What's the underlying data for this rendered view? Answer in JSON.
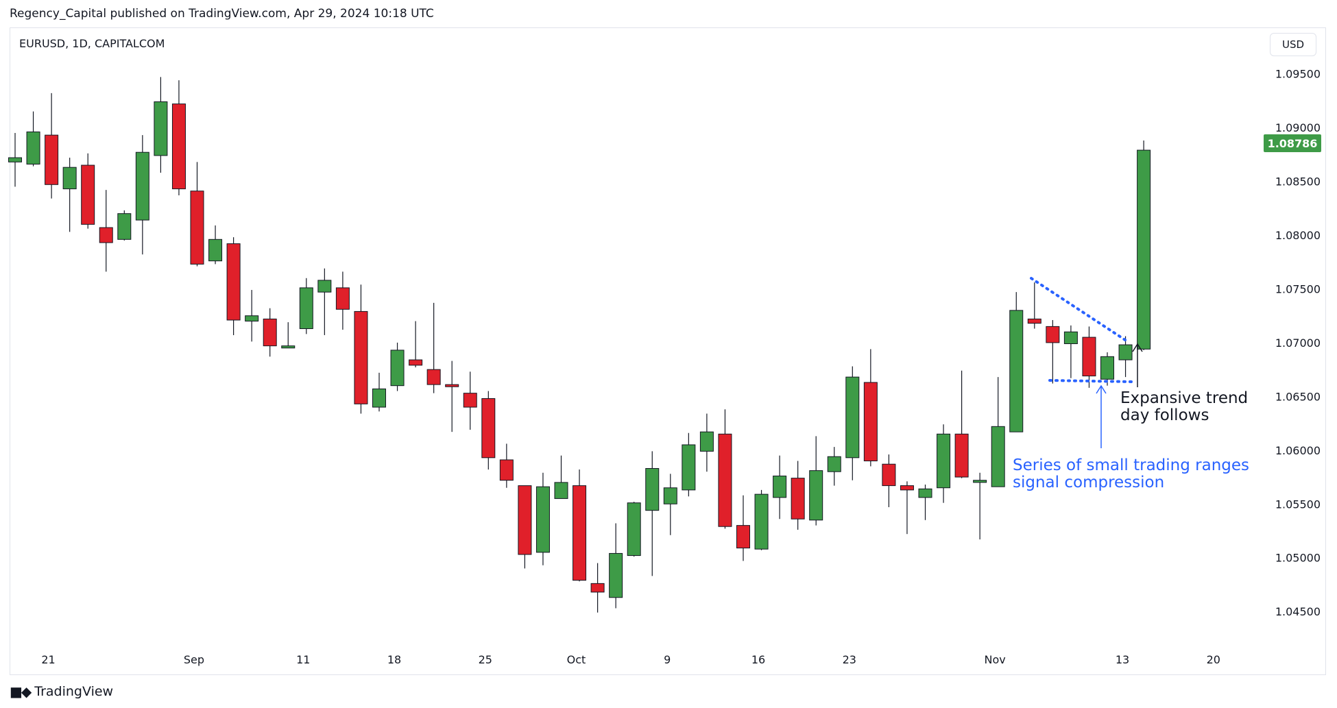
{
  "header": {
    "published": "Regency_Capital published on TradingView.com, Apr 29, 2024 10:18 UTC"
  },
  "symbol": "EURUSD, 1D, CAPITALCOM",
  "currency": "USD",
  "brand": "TradingView",
  "colors": {
    "up": "#3e9b47",
    "down": "#e0202a",
    "wick": "#131722",
    "blue": "#2962ff"
  },
  "chart_data": {
    "type": "candlestick",
    "ylim": [
      1.0445,
      1.096
    ],
    "y_ticks": [
      "1.09500",
      "1.09000",
      "1.08500",
      "1.08000",
      "1.07500",
      "1.07000",
      "1.06500",
      "1.06000",
      "1.05500",
      "1.05000",
      "1.04500"
    ],
    "x_ticks": [
      {
        "label": "21",
        "index": 1
      },
      {
        "label": "Sep",
        "index": 9
      },
      {
        "label": "11",
        "index": 15
      },
      {
        "label": "18",
        "index": 20
      },
      {
        "label": "25",
        "index": 25
      },
      {
        "label": "Oct",
        "index": 30
      },
      {
        "label": "9",
        "index": 35
      },
      {
        "label": "16",
        "index": 40
      },
      {
        "label": "23",
        "index": 45
      },
      {
        "label": "Nov",
        "index": 53
      },
      {
        "label": "13",
        "index": 60
      },
      {
        "label": "20",
        "index": 65
      }
    ],
    "candles": [
      {
        "o": 1.0868,
        "h": 1.0895,
        "l": 1.0845,
        "c": 1.0872
      },
      {
        "o": 1.0866,
        "h": 1.0915,
        "l": 1.0864,
        "c": 1.0896
      },
      {
        "o": 1.0893,
        "h": 1.0932,
        "l": 1.0834,
        "c": 1.0847
      },
      {
        "o": 1.0843,
        "h": 1.0872,
        "l": 1.0803,
        "c": 1.0863
      },
      {
        "o": 1.0865,
        "h": 1.0876,
        "l": 1.0806,
        "c": 1.081
      },
      {
        "o": 1.0807,
        "h": 1.0842,
        "l": 1.0766,
        "c": 1.0793
      },
      {
        "o": 1.0796,
        "h": 1.0823,
        "l": 1.0795,
        "c": 1.082
      },
      {
        "o": 1.0814,
        "h": 1.0893,
        "l": 1.0782,
        "c": 1.0877
      },
      {
        "o": 1.0874,
        "h": 1.0947,
        "l": 1.0858,
        "c": 1.0924
      },
      {
        "o": 1.0922,
        "h": 1.0944,
        "l": 1.0837,
        "c": 1.0843
      },
      {
        "o": 1.0841,
        "h": 1.0868,
        "l": 1.0771,
        "c": 1.0773
      },
      {
        "o": 1.0776,
        "h": 1.0809,
        "l": 1.0773,
        "c": 1.0796
      },
      {
        "o": 1.0792,
        "h": 1.0798,
        "l": 1.0707,
        "c": 1.0721
      },
      {
        "o": 1.072,
        "h": 1.0749,
        "l": 1.0701,
        "c": 1.0725
      },
      {
        "o": 1.0722,
        "h": 1.0732,
        "l": 1.0687,
        "c": 1.0697
      },
      {
        "o": 1.0695,
        "h": 1.0719,
        "l": 1.0695,
        "c": 1.0697
      },
      {
        "o": 1.0713,
        "h": 1.076,
        "l": 1.0708,
        "c": 1.0751
      },
      {
        "o": 1.0747,
        "h": 1.0769,
        "l": 1.0707,
        "c": 1.0758
      },
      {
        "o": 1.0751,
        "h": 1.0766,
        "l": 1.0712,
        "c": 1.0731
      },
      {
        "o": 1.0729,
        "h": 1.0754,
        "l": 1.0634,
        "c": 1.0643
      },
      {
        "o": 1.064,
        "h": 1.0672,
        "l": 1.0636,
        "c": 1.0657
      },
      {
        "o": 1.066,
        "h": 1.07,
        "l": 1.0655,
        "c": 1.0693
      },
      {
        "o": 1.0684,
        "h": 1.072,
        "l": 1.0677,
        "c": 1.0679
      },
      {
        "o": 1.0675,
        "h": 1.0737,
        "l": 1.0653,
        "c": 1.0661
      },
      {
        "o": 1.0661,
        "h": 1.0683,
        "l": 1.0617,
        "c": 1.0659
      },
      {
        "o": 1.0653,
        "h": 1.0673,
        "l": 1.0619,
        "c": 1.064
      },
      {
        "o": 1.0648,
        "h": 1.0655,
        "l": 1.0582,
        "c": 1.0593
      },
      {
        "o": 1.0591,
        "h": 1.0606,
        "l": 1.0565,
        "c": 1.0572
      },
      {
        "o": 1.0567,
        "h": 1.0567,
        "l": 1.049,
        "c": 1.0503
      },
      {
        "o": 1.0505,
        "h": 1.0579,
        "l": 1.0493,
        "c": 1.0566
      },
      {
        "o": 1.0555,
        "h": 1.0595,
        "l": 1.0555,
        "c": 1.057
      },
      {
        "o": 1.0567,
        "h": 1.0582,
        "l": 1.0478,
        "c": 1.0479
      },
      {
        "o": 1.0476,
        "h": 1.0495,
        "l": 1.0449,
        "c": 1.0468
      },
      {
        "o": 1.0463,
        "h": 1.0532,
        "l": 1.0453,
        "c": 1.0504
      },
      {
        "o": 1.0502,
        "h": 1.0552,
        "l": 1.0501,
        "c": 1.0551
      },
      {
        "o": 1.0544,
        "h": 1.0599,
        "l": 1.0483,
        "c": 1.0583
      },
      {
        "o": 1.055,
        "h": 1.0578,
        "l": 1.0521,
        "c": 1.0565
      },
      {
        "o": 1.0563,
        "h": 1.0616,
        "l": 1.0557,
        "c": 1.0605
      },
      {
        "o": 1.0599,
        "h": 1.0634,
        "l": 1.058,
        "c": 1.0617
      },
      {
        "o": 1.0615,
        "h": 1.0638,
        "l": 1.0527,
        "c": 1.0529
      },
      {
        "o": 1.053,
        "h": 1.0558,
        "l": 1.0497,
        "c": 1.0509
      },
      {
        "o": 1.0508,
        "h": 1.0563,
        "l": 1.0507,
        "c": 1.0559
      },
      {
        "o": 1.0556,
        "h": 1.0595,
        "l": 1.0536,
        "c": 1.0576
      },
      {
        "o": 1.0574,
        "h": 1.059,
        "l": 1.0526,
        "c": 1.0536
      },
      {
        "o": 1.0535,
        "h": 1.0613,
        "l": 1.053,
        "c": 1.0581
      },
      {
        "o": 1.058,
        "h": 1.0603,
        "l": 1.0567,
        "c": 1.0594
      },
      {
        "o": 1.0593,
        "h": 1.0678,
        "l": 1.0572,
        "c": 1.0668
      },
      {
        "o": 1.0663,
        "h": 1.0694,
        "l": 1.0585,
        "c": 1.059
      },
      {
        "o": 1.0587,
        "h": 1.0596,
        "l": 1.0547,
        "c": 1.0567
      },
      {
        "o": 1.0567,
        "h": 1.0571,
        "l": 1.0522,
        "c": 1.0563
      },
      {
        "o": 1.0556,
        "h": 1.0568,
        "l": 1.0535,
        "c": 1.0564
      },
      {
        "o": 1.0565,
        "h": 1.0624,
        "l": 1.0551,
        "c": 1.0615
      },
      {
        "o": 1.0615,
        "h": 1.0674,
        "l": 1.0574,
        "c": 1.0575
      },
      {
        "o": 1.057,
        "h": 1.0579,
        "l": 1.0517,
        "c": 1.0572
      },
      {
        "o": 1.0566,
        "h": 1.0668,
        "l": 1.0566,
        "c": 1.0622
      },
      {
        "o": 1.0617,
        "h": 1.0747,
        "l": 1.0617,
        "c": 1.073
      },
      {
        "o": 1.0722,
        "h": 1.0756,
        "l": 1.0713,
        "c": 1.0718
      },
      {
        "o": 1.0715,
        "h": 1.0721,
        "l": 1.0662,
        "c": 1.07
      },
      {
        "o": 1.0699,
        "h": 1.0716,
        "l": 1.0667,
        "c": 1.071
      },
      {
        "o": 1.0705,
        "h": 1.0715,
        "l": 1.0658,
        "c": 1.0669
      },
      {
        "o": 1.0666,
        "h": 1.0691,
        "l": 1.066,
        "c": 1.0687
      },
      {
        "o": 1.0684,
        "h": 1.0706,
        "l": 1.0668,
        "c": 1.0698
      },
      {
        "o": 1.0694,
        "h": 1.0888,
        "l": 1.0693,
        "c": 1.0879
      }
    ],
    "last_price": "1.08786",
    "annotations": {
      "black": [
        "Expansive trend",
        "day follows"
      ],
      "blue": [
        "Series of small trading ranges",
        "signal compression"
      ]
    }
  }
}
